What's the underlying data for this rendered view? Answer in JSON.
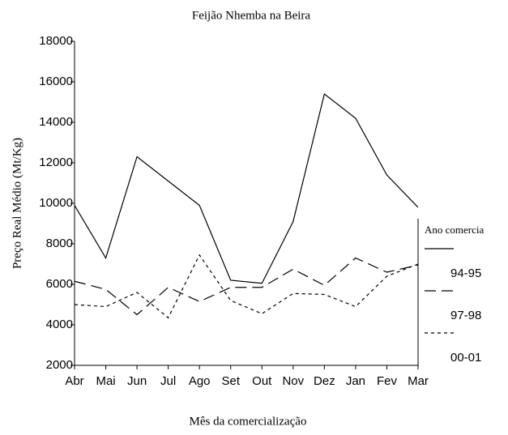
{
  "chart_data": {
    "type": "line",
    "title": "Feijão Nhemba na Beira",
    "x_label": "Mês da comercialização",
    "y_label": "Preço Real Médio (Mt/Kg)",
    "legend_title": "Ano comercia",
    "categories": [
      "Abr",
      "Mai",
      "Jun",
      "Jul",
      "Ago",
      "Set",
      "Out",
      "Nov",
      "Dez",
      "Jan",
      "Fev",
      "Mar"
    ],
    "series": [
      {
        "name": "94-95",
        "color": "#000000",
        "dash": "none",
        "values": [
          9900,
          7300,
          12300,
          11100,
          9900,
          6200,
          6050,
          9100,
          15400,
          14200,
          11400,
          9800
        ]
      },
      {
        "name": "97-98",
        "color": "#000000",
        "dash": "14 7",
        "values": [
          6150,
          5750,
          4500,
          5850,
          5150,
          5850,
          5850,
          6750,
          5950,
          7300,
          6600,
          6950
        ]
      },
      {
        "name": "00-01",
        "color": "#000000",
        "dash": "4 4",
        "values": [
          5000,
          4900,
          5600,
          4350,
          7450,
          5200,
          4550,
          5550,
          5500,
          4900,
          6400,
          7000
        ]
      }
    ],
    "ylim": [
      2000,
      18000
    ],
    "yticks": [
      2000,
      4000,
      6000,
      8000,
      10000,
      12000,
      14000,
      16000,
      18000
    ]
  }
}
